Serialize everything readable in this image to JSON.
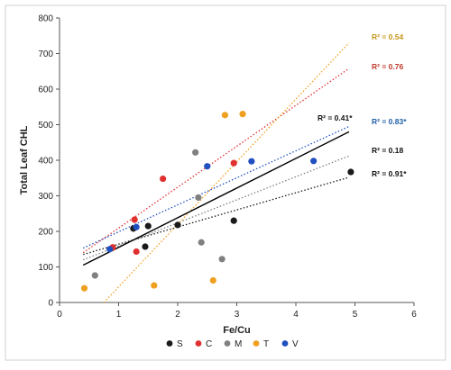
{
  "chart_data": {
    "type": "scatter",
    "title": "",
    "xlabel": "Fe/Cu",
    "ylabel": "Total Leaf CHL",
    "xlim": [
      0,
      6
    ],
    "ylim": [
      0,
      800
    ],
    "xticks": [
      0,
      1,
      2,
      3,
      4,
      5,
      6
    ],
    "yticks": [
      0,
      100,
      200,
      300,
      400,
      500,
      600,
      700,
      800
    ],
    "grid": false,
    "legend_position": "bottom",
    "series": [
      {
        "name": "S",
        "color": "#1a1a1a",
        "trend_style": "dotted",
        "r2_label": "R² = 0.91*",
        "trend": [
          [
            0.4,
            135
          ],
          [
            4.9,
            352
          ]
        ],
        "points": [
          [
            1.25,
            208
          ],
          [
            1.5,
            215
          ],
          [
            1.45,
            157
          ],
          [
            2.0,
            218
          ],
          [
            2.95,
            230
          ],
          [
            4.93,
            367
          ]
        ]
      },
      {
        "name": "C",
        "color": "#e03030",
        "trend_style": "dotted",
        "r2_label": "R² = 0.76",
        "trend": [
          [
            0.4,
            140
          ],
          [
            4.9,
            658
          ]
        ],
        "points": [
          [
            0.9,
            155
          ],
          [
            1.27,
            233
          ],
          [
            1.3,
            143
          ],
          [
            1.75,
            348
          ],
          [
            2.95,
            392
          ]
        ]
      },
      {
        "name": "M",
        "color": "#808080",
        "trend_style": "dotted",
        "r2_label": "R² = 0.18",
        "trend": [
          [
            0.4,
            120
          ],
          [
            4.9,
            412
          ]
        ],
        "points": [
          [
            0.6,
            76
          ],
          [
            2.3,
            422
          ],
          [
            2.35,
            295
          ],
          [
            2.4,
            169
          ],
          [
            2.75,
            122
          ]
        ]
      },
      {
        "name": "T",
        "color": "#f0a020",
        "trend_style": "dotted",
        "r2_label": "R² = 0.54",
        "trend": [
          [
            0.75,
            0
          ],
          [
            4.9,
            730
          ]
        ],
        "points": [
          [
            0.42,
            40
          ],
          [
            1.6,
            48
          ],
          [
            2.6,
            62
          ],
          [
            2.8,
            527
          ],
          [
            3.1,
            530
          ]
        ]
      },
      {
        "name": "V",
        "color": "#2050c0",
        "trend_style": "dotted",
        "r2_label": "R² = 0.83*",
        "trend": [
          [
            0.4,
            153
          ],
          [
            4.9,
            495
          ]
        ],
        "points": [
          [
            0.85,
            150
          ],
          [
            1.3,
            212
          ],
          [
            2.5,
            383
          ],
          [
            3.25,
            397
          ],
          [
            4.3,
            398
          ]
        ]
      }
    ],
    "overall": {
      "color": "#000000",
      "trend_style": "solid",
      "r2_label": "R² = 0.41*",
      "trend": [
        [
          0.4,
          105
        ],
        [
          4.9,
          480
        ]
      ]
    }
  }
}
